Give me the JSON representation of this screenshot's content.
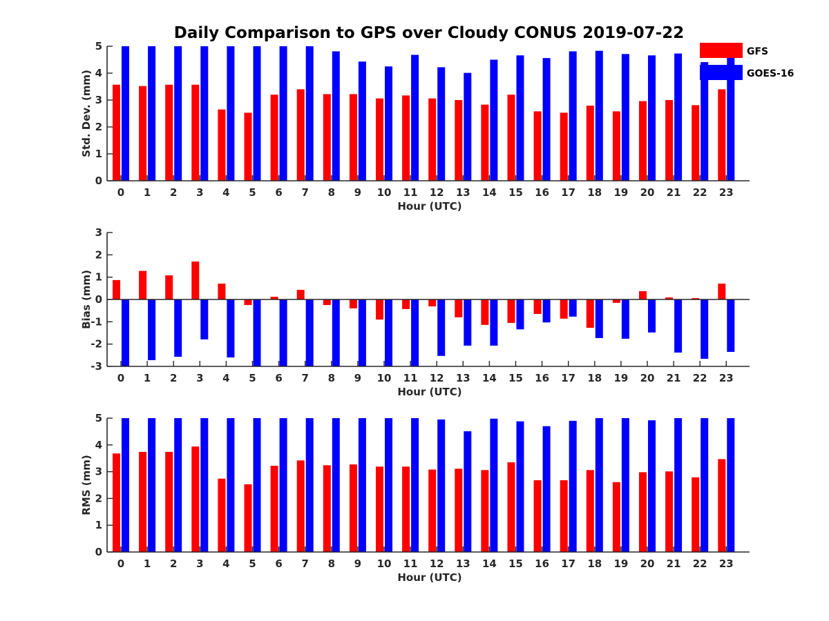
{
  "chart_data": {
    "title": "Daily Comparison to GPS over Cloudy CONUS 2019-07-22",
    "legend": {
      "placement": "top-right, outside",
      "entries": [
        {
          "name": "GFS",
          "color": "#ff0000"
        },
        {
          "name": "GOES-16",
          "color": "#0000ff"
        }
      ]
    },
    "panels": [
      {
        "type": "bar",
        "xlabel": "Hour (UTC)",
        "ylabel": "Std. Dev. (mm)",
        "ylim": [
          0,
          5
        ],
        "yticks": [
          0,
          1,
          2,
          3,
          4,
          5
        ],
        "categories": [
          "0",
          "1",
          "2",
          "3",
          "4",
          "5",
          "6",
          "7",
          "8",
          "9",
          "10",
          "11",
          "12",
          "13",
          "14",
          "15",
          "16",
          "17",
          "18",
          "19",
          "20",
          "21",
          "22",
          "23"
        ],
        "series": [
          {
            "name": "GFS",
            "color": "#ff0000",
            "values": [
              3.57,
              3.52,
              3.57,
              3.57,
              2.65,
              2.53,
              3.2,
              3.4,
              3.22,
              3.22,
              3.06,
              3.17,
              3.06,
              3.0,
              2.83,
              3.2,
              2.58,
              2.53,
              2.79,
              2.58,
              2.96,
              3.0,
              2.81,
              3.4
            ]
          },
          {
            "name": "GOES-16",
            "color": "#0000ff",
            "values": [
              5.0,
              5.0,
              5.0,
              5.0,
              5.0,
              5.0,
              5.0,
              5.0,
              4.81,
              4.43,
              4.25,
              4.68,
              4.22,
              4.01,
              4.5,
              4.66,
              4.56,
              4.81,
              4.83,
              4.71,
              4.66,
              4.73,
              4.41,
              5.0
            ]
          }
        ]
      },
      {
        "type": "bar",
        "xlabel": "Hour (UTC)",
        "ylabel": "Bias (mm)",
        "ylim": [
          -3,
          3
        ],
        "yticks": [
          -3,
          -2,
          -1,
          0,
          1,
          2,
          3
        ],
        "categories": [
          "0",
          "1",
          "2",
          "3",
          "4",
          "5",
          "6",
          "7",
          "8",
          "9",
          "10",
          "11",
          "12",
          "13",
          "14",
          "15",
          "16",
          "17",
          "18",
          "19",
          "20",
          "21",
          "22",
          "23"
        ],
        "series": [
          {
            "name": "GFS",
            "color": "#ff0000",
            "values": [
              0.87,
              1.28,
              1.08,
              1.7,
              0.71,
              -0.25,
              0.12,
              0.43,
              -0.25,
              -0.4,
              -0.9,
              -0.43,
              -0.31,
              -0.8,
              -1.14,
              -1.05,
              -0.65,
              -0.86,
              -1.27,
              -0.15,
              0.37,
              0.09,
              0.06,
              0.71
            ]
          },
          {
            "name": "GOES-16",
            "color": "#0000ff",
            "values": [
              -3.0,
              -2.72,
              -2.57,
              -1.79,
              -2.6,
              -3.0,
              -3.0,
              -3.0,
              -3.0,
              -3.0,
              -3.0,
              -3.0,
              -2.53,
              -2.07,
              -2.07,
              -1.34,
              -1.03,
              -0.77,
              -1.73,
              -1.76,
              -1.48,
              -2.38,
              -2.66,
              -2.35
            ]
          }
        ]
      },
      {
        "type": "bar",
        "xlabel": "Hour (UTC)",
        "ylabel": "RMS (mm)",
        "ylim": [
          0,
          5
        ],
        "yticks": [
          0,
          1,
          2,
          3,
          4,
          5
        ],
        "categories": [
          "0",
          "1",
          "2",
          "3",
          "4",
          "5",
          "6",
          "7",
          "8",
          "9",
          "10",
          "11",
          "12",
          "13",
          "14",
          "15",
          "16",
          "17",
          "18",
          "19",
          "20",
          "21",
          "22",
          "23"
        ],
        "series": [
          {
            "name": "GFS",
            "color": "#ff0000",
            "values": [
              3.68,
              3.74,
              3.74,
              3.94,
              2.74,
              2.53,
              3.22,
              3.42,
              3.24,
              3.27,
              3.19,
              3.19,
              3.08,
              3.11,
              3.06,
              3.35,
              2.68,
              2.68,
              3.06,
              2.61,
              2.98,
              3.01,
              2.79,
              3.47
            ]
          },
          {
            "name": "GOES-16",
            "color": "#0000ff",
            "values": [
              5.0,
              5.0,
              5.0,
              5.0,
              5.0,
              5.0,
              5.0,
              5.0,
              5.0,
              5.0,
              5.0,
              5.0,
              4.95,
              4.51,
              4.98,
              4.88,
              4.7,
              4.9,
              5.0,
              5.0,
              4.92,
              5.0,
              5.0,
              5.0
            ]
          }
        ]
      }
    ]
  }
}
